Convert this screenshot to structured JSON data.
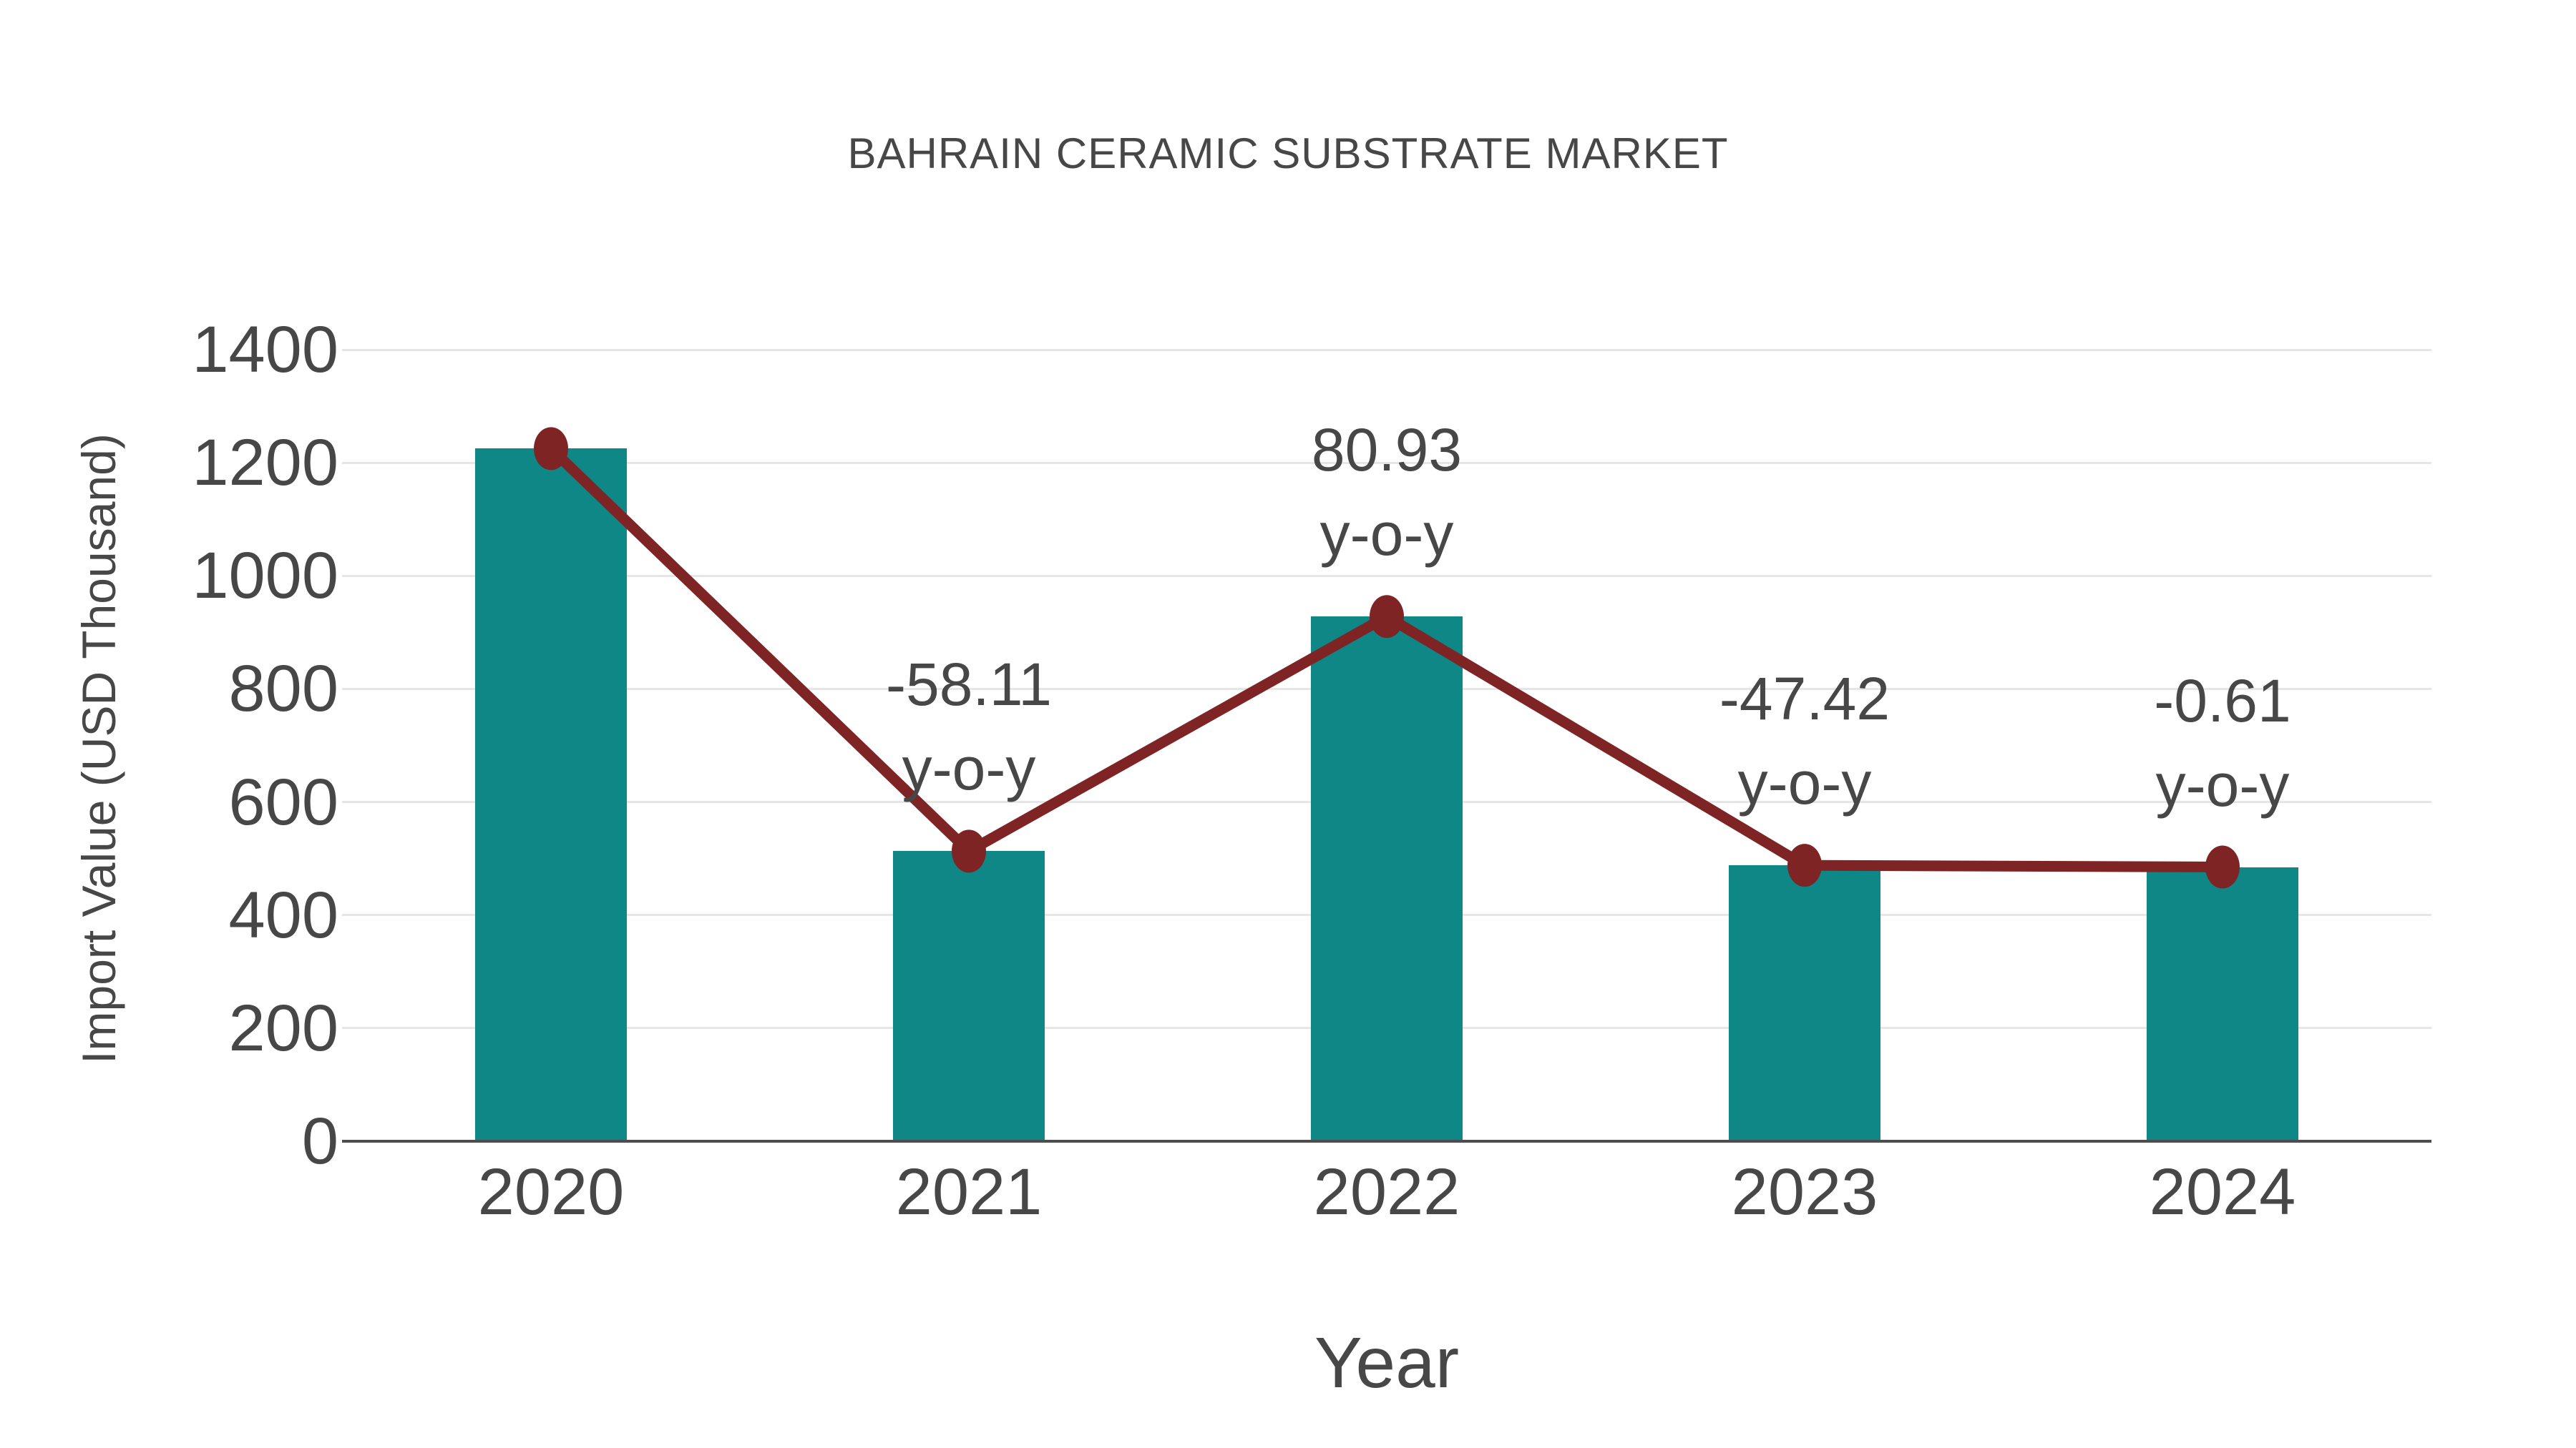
{
  "chart_data": {
    "type": "bar",
    "overlay": "line",
    "title": "BAHRAIN CERAMIC SUBSTRATE MARKET",
    "xlabel": "Year",
    "ylabel": "Import Value (USD Thousand)",
    "categories": [
      "2020",
      "2021",
      "2022",
      "2023",
      "2024"
    ],
    "series": [
      {
        "name": "Import Value",
        "type": "bar",
        "values": [
          1225,
          513,
          928,
          488,
          485
        ]
      },
      {
        "name": "Year-over-year trend",
        "type": "line",
        "values": [
          1225,
          513,
          928,
          488,
          485
        ]
      }
    ],
    "annotations": [
      {
        "category": "2021",
        "line1": "-58.11",
        "line2": "y-o-y"
      },
      {
        "category": "2022",
        "line1": "80.93",
        "line2": "y-o-y"
      },
      {
        "category": "2023",
        "line1": "-47.42",
        "line2": "y-o-y"
      },
      {
        "category": "2024",
        "line1": "-0.61",
        "line2": "y-o-y"
      }
    ],
    "yticks": [
      0,
      200,
      400,
      600,
      800,
      1000,
      1200,
      1400
    ],
    "ylim": [
      0,
      1400
    ],
    "grid": true,
    "legend": "none",
    "colors": {
      "bar": "#0E8786",
      "line": "#7F2424",
      "marker": "#7F2424",
      "text": "#474747",
      "grid": "#E6E6E6",
      "axis": "#4D4D4D",
      "background": "#FFFFFF"
    }
  }
}
